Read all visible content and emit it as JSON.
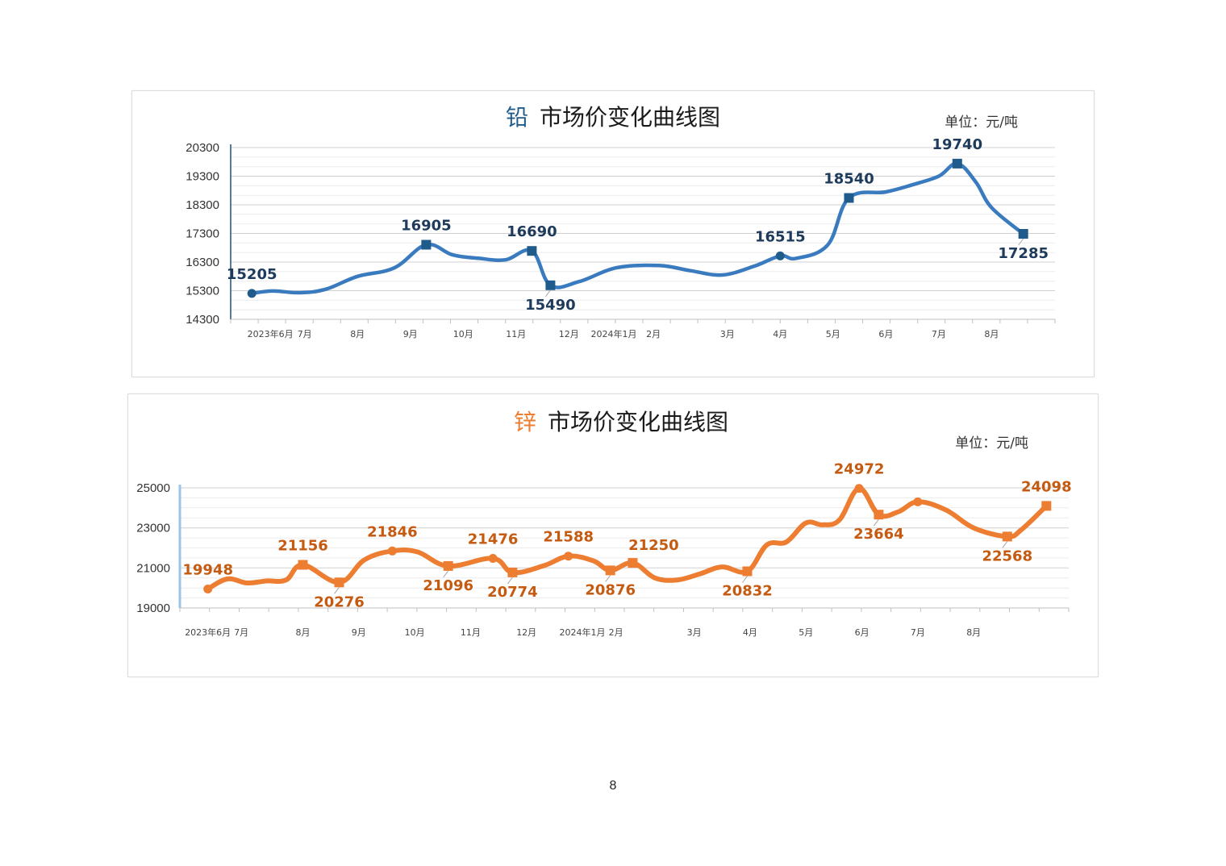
{
  "page_number": "8",
  "chart_data": [
    {
      "type": "line",
      "title_metal": "铅",
      "title_rest": "市场价变化曲线图",
      "unit": "单位：元/吨",
      "color": "#3a7bbf",
      "label_color": "#1f3b5c",
      "marker_color": "#1f5c8c",
      "y_ticks": [
        "20300",
        "19300",
        "18300",
        "17300",
        "16300",
        "15300",
        "14300"
      ],
      "ylim": [
        14300,
        20300
      ],
      "xlim": [
        -0.4,
        15.2
      ],
      "x_ticks": [
        {
          "x": 0.35,
          "label": "2023年6月"
        },
        {
          "x": 1.0,
          "label": "7月"
        },
        {
          "x": 2.0,
          "label": "8月"
        },
        {
          "x": 3.0,
          "label": "9月"
        },
        {
          "x": 4.0,
          "label": "10月"
        },
        {
          "x": 5.0,
          "label": "11月"
        },
        {
          "x": 6.0,
          "label": "12月"
        },
        {
          "x": 6.85,
          "label": "2024年1月"
        },
        {
          "x": 7.6,
          "label": "2月"
        },
        {
          "x": 9.0,
          "label": "3月"
        },
        {
          "x": 10.0,
          "label": "4月"
        },
        {
          "x": 11.0,
          "label": "5月"
        },
        {
          "x": 12.0,
          "label": "6月"
        },
        {
          "x": 13.0,
          "label": "7月"
        },
        {
          "x": 14.0,
          "label": "8月"
        }
      ],
      "series": [
        {
          "name": "铅",
          "x": [
            0,
            0.4,
            0.9,
            1.4,
            2.0,
            2.7,
            3.3,
            3.8,
            4.3,
            4.8,
            5.3,
            5.65,
            6.2,
            6.9,
            7.7,
            8.3,
            8.9,
            9.5,
            10.0,
            10.3,
            10.9,
            11.3,
            12.0,
            12.5,
            13.0,
            13.35,
            13.7,
            14.0,
            14.6
          ],
          "values": [
            15205,
            15290,
            15230,
            15350,
            15800,
            16100,
            16905,
            16550,
            16430,
            16380,
            16690,
            15490,
            15620,
            16100,
            16180,
            16000,
            15850,
            16150,
            16515,
            16430,
            16900,
            18540,
            18750,
            19000,
            19300,
            19740,
            19100,
            18200,
            17285
          ]
        }
      ],
      "points": [
        {
          "x": 0,
          "value": 15205,
          "label": "15205",
          "marker": "circle",
          "pos": "above"
        },
        {
          "x": 3.3,
          "value": 16905,
          "label": "16905",
          "marker": "square",
          "pos": "above"
        },
        {
          "x": 5.3,
          "value": 16690,
          "label": "16690",
          "marker": "square",
          "pos": "above"
        },
        {
          "x": 5.65,
          "value": 15490,
          "label": "15490",
          "marker": "square",
          "pos": "below"
        },
        {
          "x": 10.0,
          "value": 16515,
          "label": "16515",
          "marker": "circle",
          "pos": "above"
        },
        {
          "x": 11.3,
          "value": 18540,
          "label": "18540",
          "marker": "square",
          "pos": "above"
        },
        {
          "x": 13.35,
          "value": 19740,
          "label": "19740",
          "marker": "square",
          "pos": "above"
        },
        {
          "x": 14.6,
          "value": 17285,
          "label": "17285",
          "marker": "square",
          "pos": "below"
        }
      ]
    },
    {
      "type": "line",
      "title_metal": "锌",
      "title_rest": "市场价变化曲线图",
      "unit": "单位：元/吨",
      "color": "#ed7d31",
      "label_color": "#c55a11",
      "marker_color": "#ed7d31",
      "y_ticks": [
        "25000",
        "23000",
        "21000",
        "19000"
      ],
      "ylim": [
        19000,
        25000
      ],
      "xlim": [
        -0.5,
        15.4
      ],
      "x_ticks": [
        {
          "x": 0.0,
          "label": "2023年6月"
        },
        {
          "x": 0.6,
          "label": "7月"
        },
        {
          "x": 1.7,
          "label": "8月"
        },
        {
          "x": 2.7,
          "label": "9月"
        },
        {
          "x": 3.7,
          "label": "10月"
        },
        {
          "x": 4.7,
          "label": "11月"
        },
        {
          "x": 5.7,
          "label": "12月"
        },
        {
          "x": 6.7,
          "label": "2024年1月"
        },
        {
          "x": 7.3,
          "label": "2月"
        },
        {
          "x": 8.7,
          "label": "3月"
        },
        {
          "x": 9.7,
          "label": "4月"
        },
        {
          "x": 10.7,
          "label": "5月"
        },
        {
          "x": 11.7,
          "label": "6月"
        },
        {
          "x": 12.7,
          "label": "7月"
        },
        {
          "x": 13.7,
          "label": "8月"
        }
      ],
      "series": [
        {
          "name": "锌",
          "x": [
            0,
            0.35,
            0.7,
            1.05,
            1.4,
            1.7,
            2.35,
            2.8,
            3.3,
            3.75,
            4.3,
            5.1,
            5.45,
            6.0,
            6.45,
            6.9,
            7.2,
            7.6,
            8.0,
            8.4,
            8.8,
            9.2,
            9.65,
            10.0,
            10.35,
            10.7,
            11.0,
            11.3,
            11.65,
            12.0,
            12.35,
            12.7,
            13.2,
            13.7,
            14.3,
            14.55,
            15.0
          ],
          "values": [
            19948,
            20450,
            20250,
            20350,
            20400,
            21156,
            20276,
            21400,
            21846,
            21800,
            21096,
            21476,
            20774,
            21100,
            21588,
            21350,
            20876,
            21250,
            20500,
            20400,
            20700,
            21050,
            20832,
            22150,
            22300,
            23250,
            23150,
            23400,
            24972,
            23664,
            23800,
            24300,
            23900,
            23000,
            22568,
            22900,
            24098
          ]
        }
      ],
      "points": [
        {
          "x": 0,
          "value": 19948,
          "label": "19948",
          "marker": "circle",
          "pos": "above"
        },
        {
          "x": 1.7,
          "value": 21156,
          "label": "21156",
          "marker": "square",
          "pos": "above"
        },
        {
          "x": 2.35,
          "value": 20276,
          "label": "20276",
          "marker": "square",
          "pos": "below"
        },
        {
          "x": 3.3,
          "value": 21846,
          "label": "21846",
          "marker": "circle",
          "pos": "above"
        },
        {
          "x": 4.3,
          "value": 21096,
          "label": "21096",
          "marker": "square",
          "pos": "below"
        },
        {
          "x": 5.1,
          "value": 21476,
          "label": "21476",
          "marker": "circle",
          "pos": "above"
        },
        {
          "x": 5.45,
          "value": 20774,
          "label": "20774",
          "marker": "square",
          "pos": "below"
        },
        {
          "x": 6.45,
          "value": 21588,
          "label": "21588",
          "marker": "circle",
          "pos": "above"
        },
        {
          "x": 7.2,
          "value": 20876,
          "label": "20876",
          "marker": "square",
          "pos": "below"
        },
        {
          "x": 7.6,
          "value": 21250,
          "label": "21250",
          "marker": "square",
          "pos": "above-right"
        },
        {
          "x": 9.65,
          "value": 20832,
          "label": "20832",
          "marker": "square",
          "pos": "below"
        },
        {
          "x": 11.65,
          "value": 24972,
          "label": "24972",
          "marker": "circle",
          "pos": "above"
        },
        {
          "x": 12.0,
          "value": 23664,
          "label": "23664",
          "marker": "square",
          "pos": "below"
        },
        {
          "x": 12.7,
          "value": 24300,
          "label": "",
          "marker": "circle",
          "pos": "none"
        },
        {
          "x": 14.3,
          "value": 22568,
          "label": "22568",
          "marker": "square",
          "pos": "below"
        },
        {
          "x": 15.0,
          "value": 24098,
          "label": "24098",
          "marker": "square",
          "pos": "above"
        }
      ]
    }
  ]
}
